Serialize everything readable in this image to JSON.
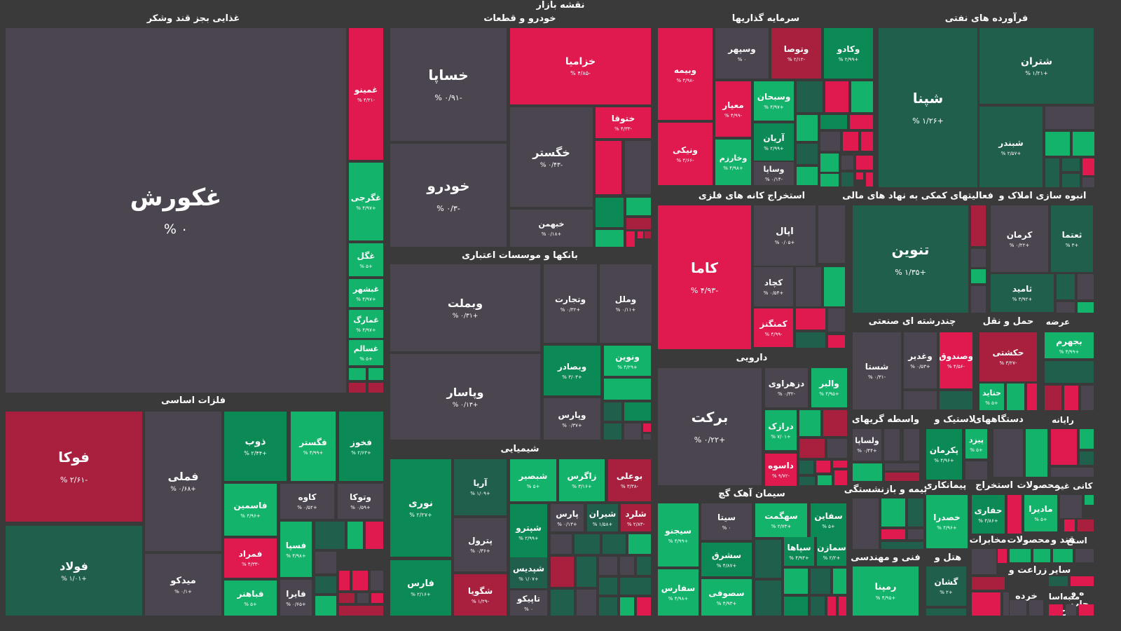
{
  "page_title": "نقشه بازار",
  "colors": {
    "background": "#3a3a3a",
    "neutral": "#4b4550",
    "light_green": "#14b36b",
    "mid_green": "#0c8a55",
    "dark_green": "#1f5f4b",
    "red": "#e01a4f",
    "dark_red": "#a8203e"
  },
  "sectors": [
    "غذایی بجز قند وشکر",
    "خودرو و قطعات",
    "سرمایه گذاریها",
    "فرآورده های نفتی",
    "استخراج کانه های فلزی",
    "فعالیتهای کمکی به نهاد های مالی",
    "انبوه سازی املاک و",
    "بانکها و موسسات اعتباری",
    "فلزات اساسی",
    "دارویی",
    "چندرشته ای صنعتی",
    "حمل و نقل",
    "عرضه",
    "شیمیایی",
    "واسطه گریهای",
    "لاستیک و",
    "دستگاههای",
    "رایانه",
    "سیمان آهک گچ",
    "بیمه و بازنشستگی",
    "پیمانکاری",
    "استخراج",
    "محصولات",
    "کانی غیر",
    "مخابرات",
    "محصولات",
    "قند و",
    "استخ",
    "فنی و مهندسی",
    "هتل و",
    "ماشین",
    "زراعت و",
    "سایر",
    "خرده",
    "اسا",
    "منبه",
    "چاپ",
    "ه و",
    "ح"
  ],
  "tiles": [
    {
      "symbol": "غکورش",
      "change": "۰ %"
    },
    {
      "symbol": "غمینو",
      "change": "-۴/۲۱ %"
    },
    {
      "symbol": "غگرجی",
      "change": "+۴/۹۷ %"
    },
    {
      "symbol": "غگل",
      "change": "+۵ %"
    },
    {
      "symbol": "غبشهر",
      "change": "+۴/۹۷ %"
    },
    {
      "symbol": "غمارگ",
      "change": "+۴/۹۷ %"
    },
    {
      "symbol": "غسالم",
      "change": "+۵ %"
    },
    {
      "symbol": "خساپا",
      "change": "-۰/۹۱ %"
    },
    {
      "symbol": "خزامیا",
      "change": "-۴/۸۵ %"
    },
    {
      "symbol": "خودرو",
      "change": "-۰/۳ %"
    },
    {
      "symbol": "خگستر",
      "change": "-۰/۴۳ %"
    },
    {
      "symbol": "ختوقا",
      "change": "-۴/۳۳ %"
    },
    {
      "symbol": "خبهمن",
      "change": "+۰/۱۸ %"
    },
    {
      "symbol": "وبیمه",
      "change": "-۴/۹۸ %"
    },
    {
      "symbol": "وسپهر",
      "change": "۰ %"
    },
    {
      "symbol": "وتوصا",
      "change": "-۲/۱۲ %"
    },
    {
      "symbol": "وکادو",
      "change": "+۲/۹۹ %"
    },
    {
      "symbol": "معیار",
      "change": "-۴/۹۹ %"
    },
    {
      "symbol": "وسبحان",
      "change": "+۴/۹۷ %"
    },
    {
      "symbol": "ونیکی",
      "change": "-۴/۶۶ %"
    },
    {
      "symbol": "آریان",
      "change": "+۲/۹۹ %"
    },
    {
      "symbol": "وخارزم",
      "change": "+۴/۹۸ %"
    },
    {
      "symbol": "وساپا",
      "change": "-۰/۱۴ %"
    },
    {
      "symbol": "شتران",
      "change": "+۱/۲۱ %"
    },
    {
      "symbol": "شپنا",
      "change": "+۱/۲۶ %"
    },
    {
      "symbol": "شبندر",
      "change": "+۲/۵۷ %"
    },
    {
      "symbol": "کاما",
      "change": "-۴/۹۳ %"
    },
    {
      "symbol": "اپال",
      "change": "+۰/۰۵ %"
    },
    {
      "symbol": "کچاد",
      "change": "+۰/۵۴ %"
    },
    {
      "symbol": "کمنگنز",
      "change": "-۴/۹۹ %"
    },
    {
      "symbol": "تنوین",
      "change": "+۱/۳۵ %"
    },
    {
      "symbol": "کرمان",
      "change": "+۰/۲۲ %"
    },
    {
      "symbol": "ثعتما",
      "change": "+۳ %"
    },
    {
      "symbol": "ثامید",
      "change": "+۳/۹۲ %"
    },
    {
      "symbol": "وبملت",
      "change": "+۰/۳۱ %"
    },
    {
      "symbol": "وتجارت",
      "change": "+۰/۳۲ %"
    },
    {
      "symbol": "وملل",
      "change": "+۰/۱۱ %"
    },
    {
      "symbol": "وپاسار",
      "change": "+۰/۱۳ %"
    },
    {
      "symbol": "وبصادر",
      "change": "+۳/۰۳ %"
    },
    {
      "symbol": "ونوین",
      "change": "+۴/۲۹ %"
    },
    {
      "symbol": "وپارس",
      "change": "+۰/۳۷ %"
    },
    {
      "symbol": "فوکا",
      "change": "-۲/۶۱ %"
    },
    {
      "symbol": "فملی",
      "change": "+۰/۶۸ %"
    },
    {
      "symbol": "ذوب",
      "change": "+۲/۴۴ %"
    },
    {
      "symbol": "فگستر",
      "change": "+۴/۹۹ %"
    },
    {
      "symbol": "فخوز",
      "change": "+۲/۶۳ %"
    },
    {
      "symbol": "فولاد",
      "change": "+۱/۰۱ %"
    },
    {
      "symbol": "فاسمین",
      "change": "+۴/۹۶ %"
    },
    {
      "symbol": "کاوه",
      "change": "+۰/۵۲ %"
    },
    {
      "symbol": "وتوکا",
      "change": "+۰/۵۹ %"
    },
    {
      "symbol": "فسپا",
      "change": "+۴/۹۸ %"
    },
    {
      "symbol": "فمراد",
      "change": "-۴/۳۳ %"
    },
    {
      "symbol": "میدکو",
      "change": "+۰/۱ %"
    },
    {
      "symbol": "فباهنر",
      "change": "+۵ %"
    },
    {
      "symbol": "فایرا",
      "change": "+۰/۶۵ %"
    },
    {
      "symbol": "برکت",
      "change": "+۰/۲۲ %"
    },
    {
      "symbol": "دزهراوی",
      "change": "-۰/۳۲ %"
    },
    {
      "symbol": "والبر",
      "change": "+۴/۹۵ %"
    },
    {
      "symbol": "درازک",
      "change": "+۷/۰۱ %"
    },
    {
      "symbol": "داسوه",
      "change": "-۹/۷۲ %"
    },
    {
      "symbol": "شستا",
      "change": "-۰/۳۱ %"
    },
    {
      "symbol": "وغدیر",
      "change": "+۰/۵۳ %"
    },
    {
      "symbol": "وصندوق",
      "change": "-۴/۵۶ %"
    },
    {
      "symbol": "حکشتی",
      "change": "-۳/۲۷ %"
    },
    {
      "symbol": "بجهرم",
      "change": "+۴/۹۹ %"
    },
    {
      "symbol": "حتاید",
      "change": "+۵ %"
    },
    {
      "symbol": "نوری",
      "change": "+۲/۲۷ %"
    },
    {
      "symbol": "آریا",
      "change": "+۱/۰۹ %"
    },
    {
      "symbol": "شبصیر",
      "change": "+۵ %"
    },
    {
      "symbol": "زاگرس",
      "change": "+۳/۱۶ %"
    },
    {
      "symbol": "بوعلی",
      "change": "-۳/۳۸ %"
    },
    {
      "symbol": "پترول",
      "change": "+۰/۳۶ %"
    },
    {
      "symbol": "شپترو",
      "change": "+۲/۹۹ %"
    },
    {
      "symbol": "پارس",
      "change": "+۰/۱۳ %"
    },
    {
      "symbol": "شیران",
      "change": "+۱/۵۸ %"
    },
    {
      "symbol": "شلرد",
      "change": "-۲/۸۳ %"
    },
    {
      "symbol": "شپدیس",
      "change": "+۱/۰۷ %"
    },
    {
      "symbol": "فارس",
      "change": "+۲/۱۶ %"
    },
    {
      "symbol": "شگویا",
      "change": "-۱/۲۹ %"
    },
    {
      "symbol": "تاپیکو",
      "change": "۰ %"
    },
    {
      "symbol": "ولساپا",
      "change": "+۰/۴۴ %"
    },
    {
      "symbol": "پکرمان",
      "change": "+۴/۹۶ %"
    },
    {
      "symbol": "پیزد",
      "change": "+۵ %"
    },
    {
      "symbol": "سیتا",
      "change": "۰ %"
    },
    {
      "symbol": "سهگمت",
      "change": "+۲/۷۳ %"
    },
    {
      "symbol": "سفاین",
      "change": "+۵ %"
    },
    {
      "symbol": "سیجنو",
      "change": "+۴/۹۹ %"
    },
    {
      "symbol": "سشرق",
      "change": "+۴/۸۷ %"
    },
    {
      "symbol": "سپاها",
      "change": "+۴/۹۳ %"
    },
    {
      "symbol": "سمازن",
      "change": "+۲/۲ %"
    },
    {
      "symbol": "سفارس",
      "change": "+۴/۹۸ %"
    },
    {
      "symbol": "سصوفی",
      "change": "+۴/۹۳ %"
    },
    {
      "symbol": "حفاری",
      "change": "+۴/۸۶ %"
    },
    {
      "symbol": "مادیرا",
      "change": "+۵ %"
    },
    {
      "symbol": "خصدرا",
      "change": "+۴/۹۶ %"
    },
    {
      "symbol": "رمپنا",
      "change": "+۴/۹۵ %"
    },
    {
      "symbol": "گشان",
      "change": "+۲ %"
    }
  ]
}
